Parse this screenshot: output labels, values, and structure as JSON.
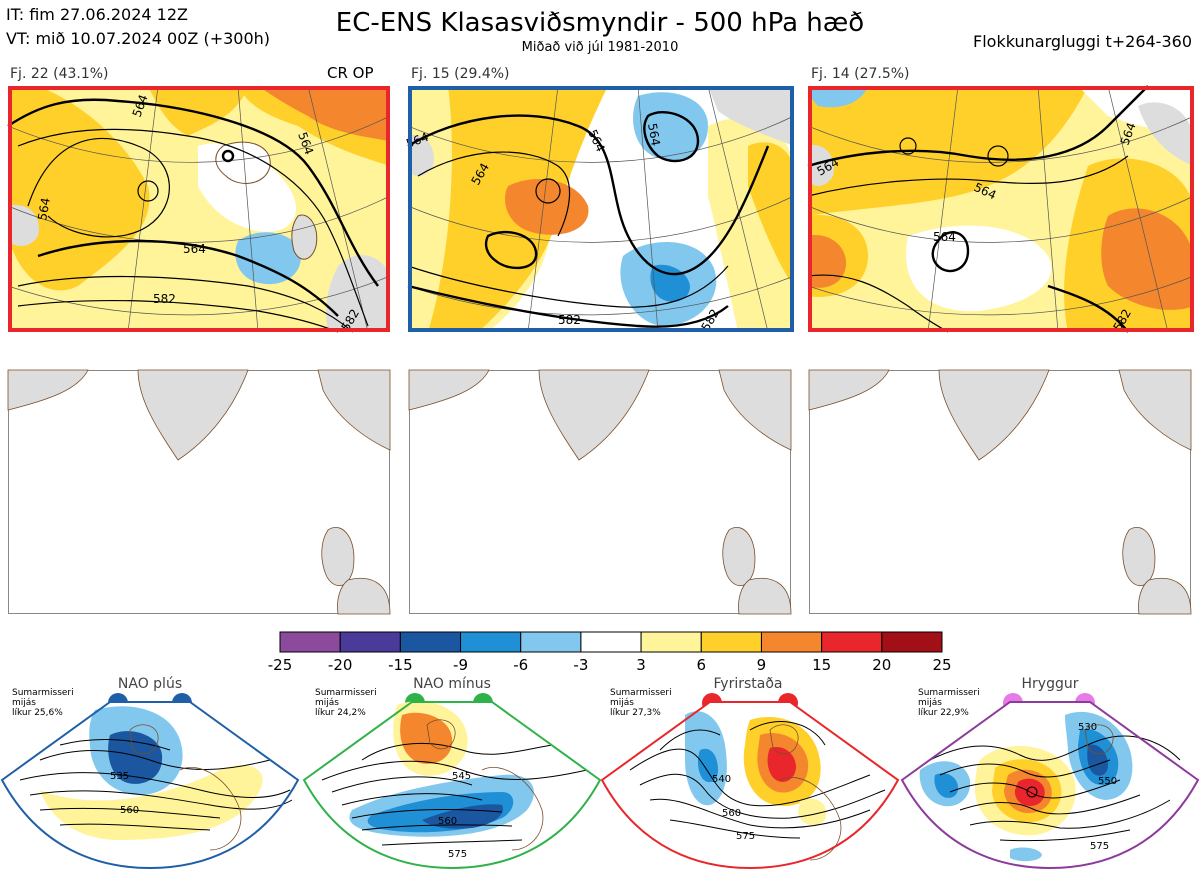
{
  "header": {
    "it_line": "IT: fim 27.06.2024 12Z",
    "vt_line": "VT: mið 10.07.2024 00Z  (+300h)",
    "title": "EC-ENS Klasasviðsmyndir - 500 hPa hæð",
    "subtitle": "Miðað við júl 1981-2010",
    "window": "Flokkunargluggi t+264-360"
  },
  "clusters": [
    {
      "label": "Fj. 22 (43.1%)",
      "tag": "CR OP",
      "border_color": "#e8262b",
      "contour_labels": [
        "564",
        "564",
        "564",
        "564",
        "582",
        "582"
      ]
    },
    {
      "label": "Fj. 15 (29.4%)",
      "tag": "",
      "border_color": "#1f5fa8",
      "contour_labels": [
        "564",
        "564",
        "564",
        "564",
        "582",
        "582"
      ]
    },
    {
      "label": "Fj. 14 (27.5%)",
      "tag": "",
      "border_color": "#e8262b",
      "contour_labels": [
        "564",
        "564",
        "564",
        "564",
        "582"
      ]
    }
  ],
  "colorbar": {
    "labels": [
      "-25",
      "-20",
      "-15",
      "-9",
      "-6",
      "-3",
      "3",
      "6",
      "9",
      "15",
      "20",
      "25"
    ],
    "colors": [
      "#8c4a9c",
      "#4a3a9a",
      "#1a57a0",
      "#1f8fd6",
      "#82c8ee",
      "#ffffff",
      "#fff49a",
      "#ffd02a",
      "#f4872e",
      "#e8262b",
      "#a30f16"
    ]
  },
  "regimes": [
    {
      "name": "NAO plús",
      "prob_line1": "Sumarmisseri",
      "prob_line2": "mijás",
      "prob_line3": "líkur 25,6%",
      "color": "#1f5fa8",
      "contours": [
        "535",
        "560"
      ]
    },
    {
      "name": "NAO mínus",
      "prob_line1": "Sumarmisseri",
      "prob_line2": "mijás",
      "prob_line3": "líkur 24,2%",
      "color": "#2fb24a",
      "contours": [
        "545",
        "560",
        "575"
      ]
    },
    {
      "name": "Fyrirstaða",
      "prob_line1": "Sumarmisseri",
      "prob_line2": "mijás",
      "prob_line3": "líkur 27,3%",
      "color": "#e8262b",
      "contours": [
        "540",
        "560",
        "575"
      ]
    },
    {
      "name": "Hryggur",
      "prob_line1": "Sumarmisseri",
      "prob_line2": "mijás",
      "prob_line3": "líkur 22,9%",
      "color": "#8c3a9c",
      "dot_color": "#e67ae6",
      "contours": [
        "530",
        "550",
        "575"
      ]
    }
  ]
}
